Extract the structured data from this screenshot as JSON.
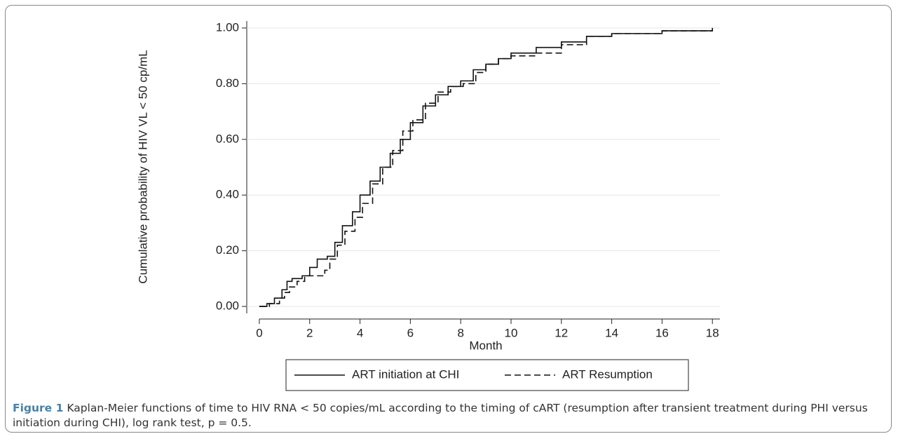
{
  "chart_data": {
    "type": "step",
    "x_label": "Month",
    "y_label": "Cumulative probability of HIV VL < 50 cp/mL",
    "xlim": [
      -0.5,
      18.3
    ],
    "ylim": [
      -0.025,
      1.025
    ],
    "xticks": [
      0,
      2,
      4,
      6,
      8,
      10,
      12,
      14,
      16,
      18
    ],
    "yticks": [
      {
        "value": 0,
        "label": "0.00"
      },
      {
        "value": 0.2,
        "label": "0.20"
      },
      {
        "value": 0.4,
        "label": "0.40"
      },
      {
        "value": 0.6,
        "label": "0.60"
      },
      {
        "value": 0.8,
        "label": "0.80"
      },
      {
        "value": 1,
        "label": "1.00"
      }
    ],
    "grid": true,
    "series": [
      {
        "name": "ART initiation at CHI",
        "color": "#111111",
        "dash": "solid",
        "x": [
          0,
          0.3,
          0.6,
          0.9,
          1.1,
          1.3,
          1.7,
          2.0,
          2.3,
          2.7,
          3.0,
          3.3,
          3.7,
          4.0,
          4.4,
          4.8,
          5.2,
          5.6,
          6.0,
          6.5,
          7.0,
          7.5,
          8.0,
          8.5,
          9.0,
          9.5,
          10,
          11,
          12,
          13,
          14,
          16,
          18
        ],
        "values": [
          0,
          0.01,
          0.03,
          0.06,
          0.09,
          0.1,
          0.11,
          0.14,
          0.17,
          0.18,
          0.23,
          0.29,
          0.34,
          0.4,
          0.45,
          0.5,
          0.55,
          0.6,
          0.66,
          0.72,
          0.76,
          0.79,
          0.81,
          0.85,
          0.87,
          0.89,
          0.91,
          0.93,
          0.95,
          0.97,
          0.98,
          0.99,
          1.0
        ]
      },
      {
        "name": "ART Resumption",
        "color": "#111111",
        "dash": "dashed",
        "x": [
          0,
          0.4,
          0.8,
          1.0,
          1.2,
          1.5,
          1.8,
          2.2,
          2.6,
          2.8,
          3.1,
          3.4,
          3.8,
          4.1,
          4.5,
          4.9,
          5.3,
          5.7,
          6.1,
          6.6,
          7.1,
          7.6,
          8.1,
          8.6,
          9.0,
          9.5,
          10,
          11,
          12,
          13,
          14,
          16,
          18
        ],
        "values": [
          0,
          0.01,
          0.03,
          0.05,
          0.07,
          0.09,
          0.11,
          0.11,
          0.13,
          0.17,
          0.22,
          0.27,
          0.32,
          0.37,
          0.44,
          0.5,
          0.56,
          0.63,
          0.67,
          0.73,
          0.77,
          0.79,
          0.8,
          0.84,
          0.87,
          0.89,
          0.9,
          0.91,
          0.94,
          0.97,
          0.98,
          0.99,
          1.0
        ]
      }
    ]
  },
  "caption": {
    "label": "Figure 1",
    "text": "Kaplan-Meier functions of time to HIV RNA < 50 copies/mL according to the timing of cART (resumption after transient treatment during PHI versus initiation during CHI), log rank test, p = 0.5."
  }
}
